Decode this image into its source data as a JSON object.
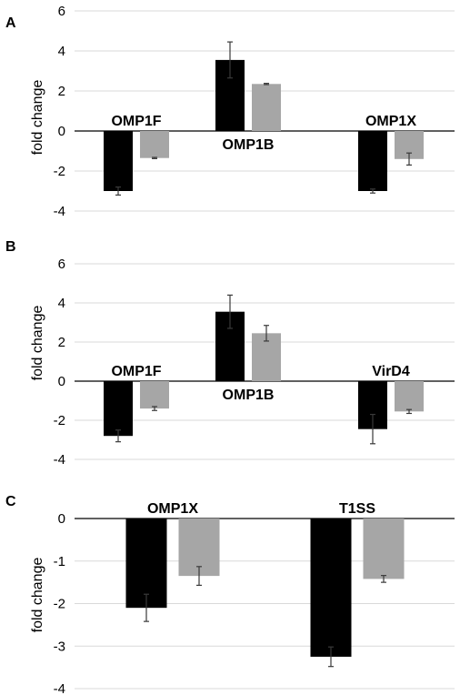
{
  "chart_data": [
    {
      "type": "bar",
      "panel_label": "A",
      "ylabel": "fold change",
      "ylim": [
        -4,
        6
      ],
      "yticks": [
        -4,
        -2,
        0,
        2,
        4,
        6
      ],
      "ytick_labels": [
        "-4",
        "-2",
        "0",
        "2",
        "4",
        "6"
      ],
      "categories": [
        "OMP1F",
        "OMP1B",
        "OMP1X"
      ],
      "grid": true,
      "series": [
        {
          "color": "#000000",
          "values": [
            -3.0,
            3.55,
            -3.0
          ],
          "errors": [
            0.2,
            0.9,
            0.1
          ]
        },
        {
          "color": "#a6a6a6",
          "values": [
            -1.35,
            2.35,
            -1.4
          ],
          "errors": [
            0.03,
            0.03,
            0.3
          ]
        }
      ]
    },
    {
      "type": "bar",
      "panel_label": "B",
      "ylabel": "fold change",
      "ylim": [
        -4,
        6
      ],
      "yticks": [
        -4,
        -2,
        0,
        2,
        4,
        6
      ],
      "ytick_labels": [
        "-4",
        "-2",
        "0",
        "2",
        "4",
        "6"
      ],
      "categories": [
        "OMP1F",
        "OMP1B",
        "VirD4"
      ],
      "grid": true,
      "series": [
        {
          "color": "#000000",
          "values": [
            -2.8,
            3.55,
            -2.45
          ],
          "errors": [
            0.3,
            0.85,
            0.75
          ]
        },
        {
          "color": "#a6a6a6",
          "values": [
            -1.4,
            2.45,
            -1.55
          ],
          "errors": [
            0.1,
            0.4,
            0.1
          ]
        }
      ]
    },
    {
      "type": "bar",
      "panel_label": "C",
      "ylabel": "fold change",
      "ylim": [
        -4,
        0
      ],
      "yticks": [
        -4,
        -3,
        -2,
        -1,
        0
      ],
      "ytick_labels": [
        "-4",
        "-3",
        "-2",
        "-1",
        "0"
      ],
      "categories": [
        "OMP1X",
        "T1SS"
      ],
      "grid": true,
      "series": [
        {
          "color": "#000000",
          "values": [
            -2.1,
            -3.25
          ],
          "errors": [
            0.32,
            0.23
          ]
        },
        {
          "color": "#a6a6a6",
          "values": [
            -1.35,
            -1.42
          ],
          "errors": [
            0.22,
            0.08
          ]
        }
      ]
    }
  ]
}
